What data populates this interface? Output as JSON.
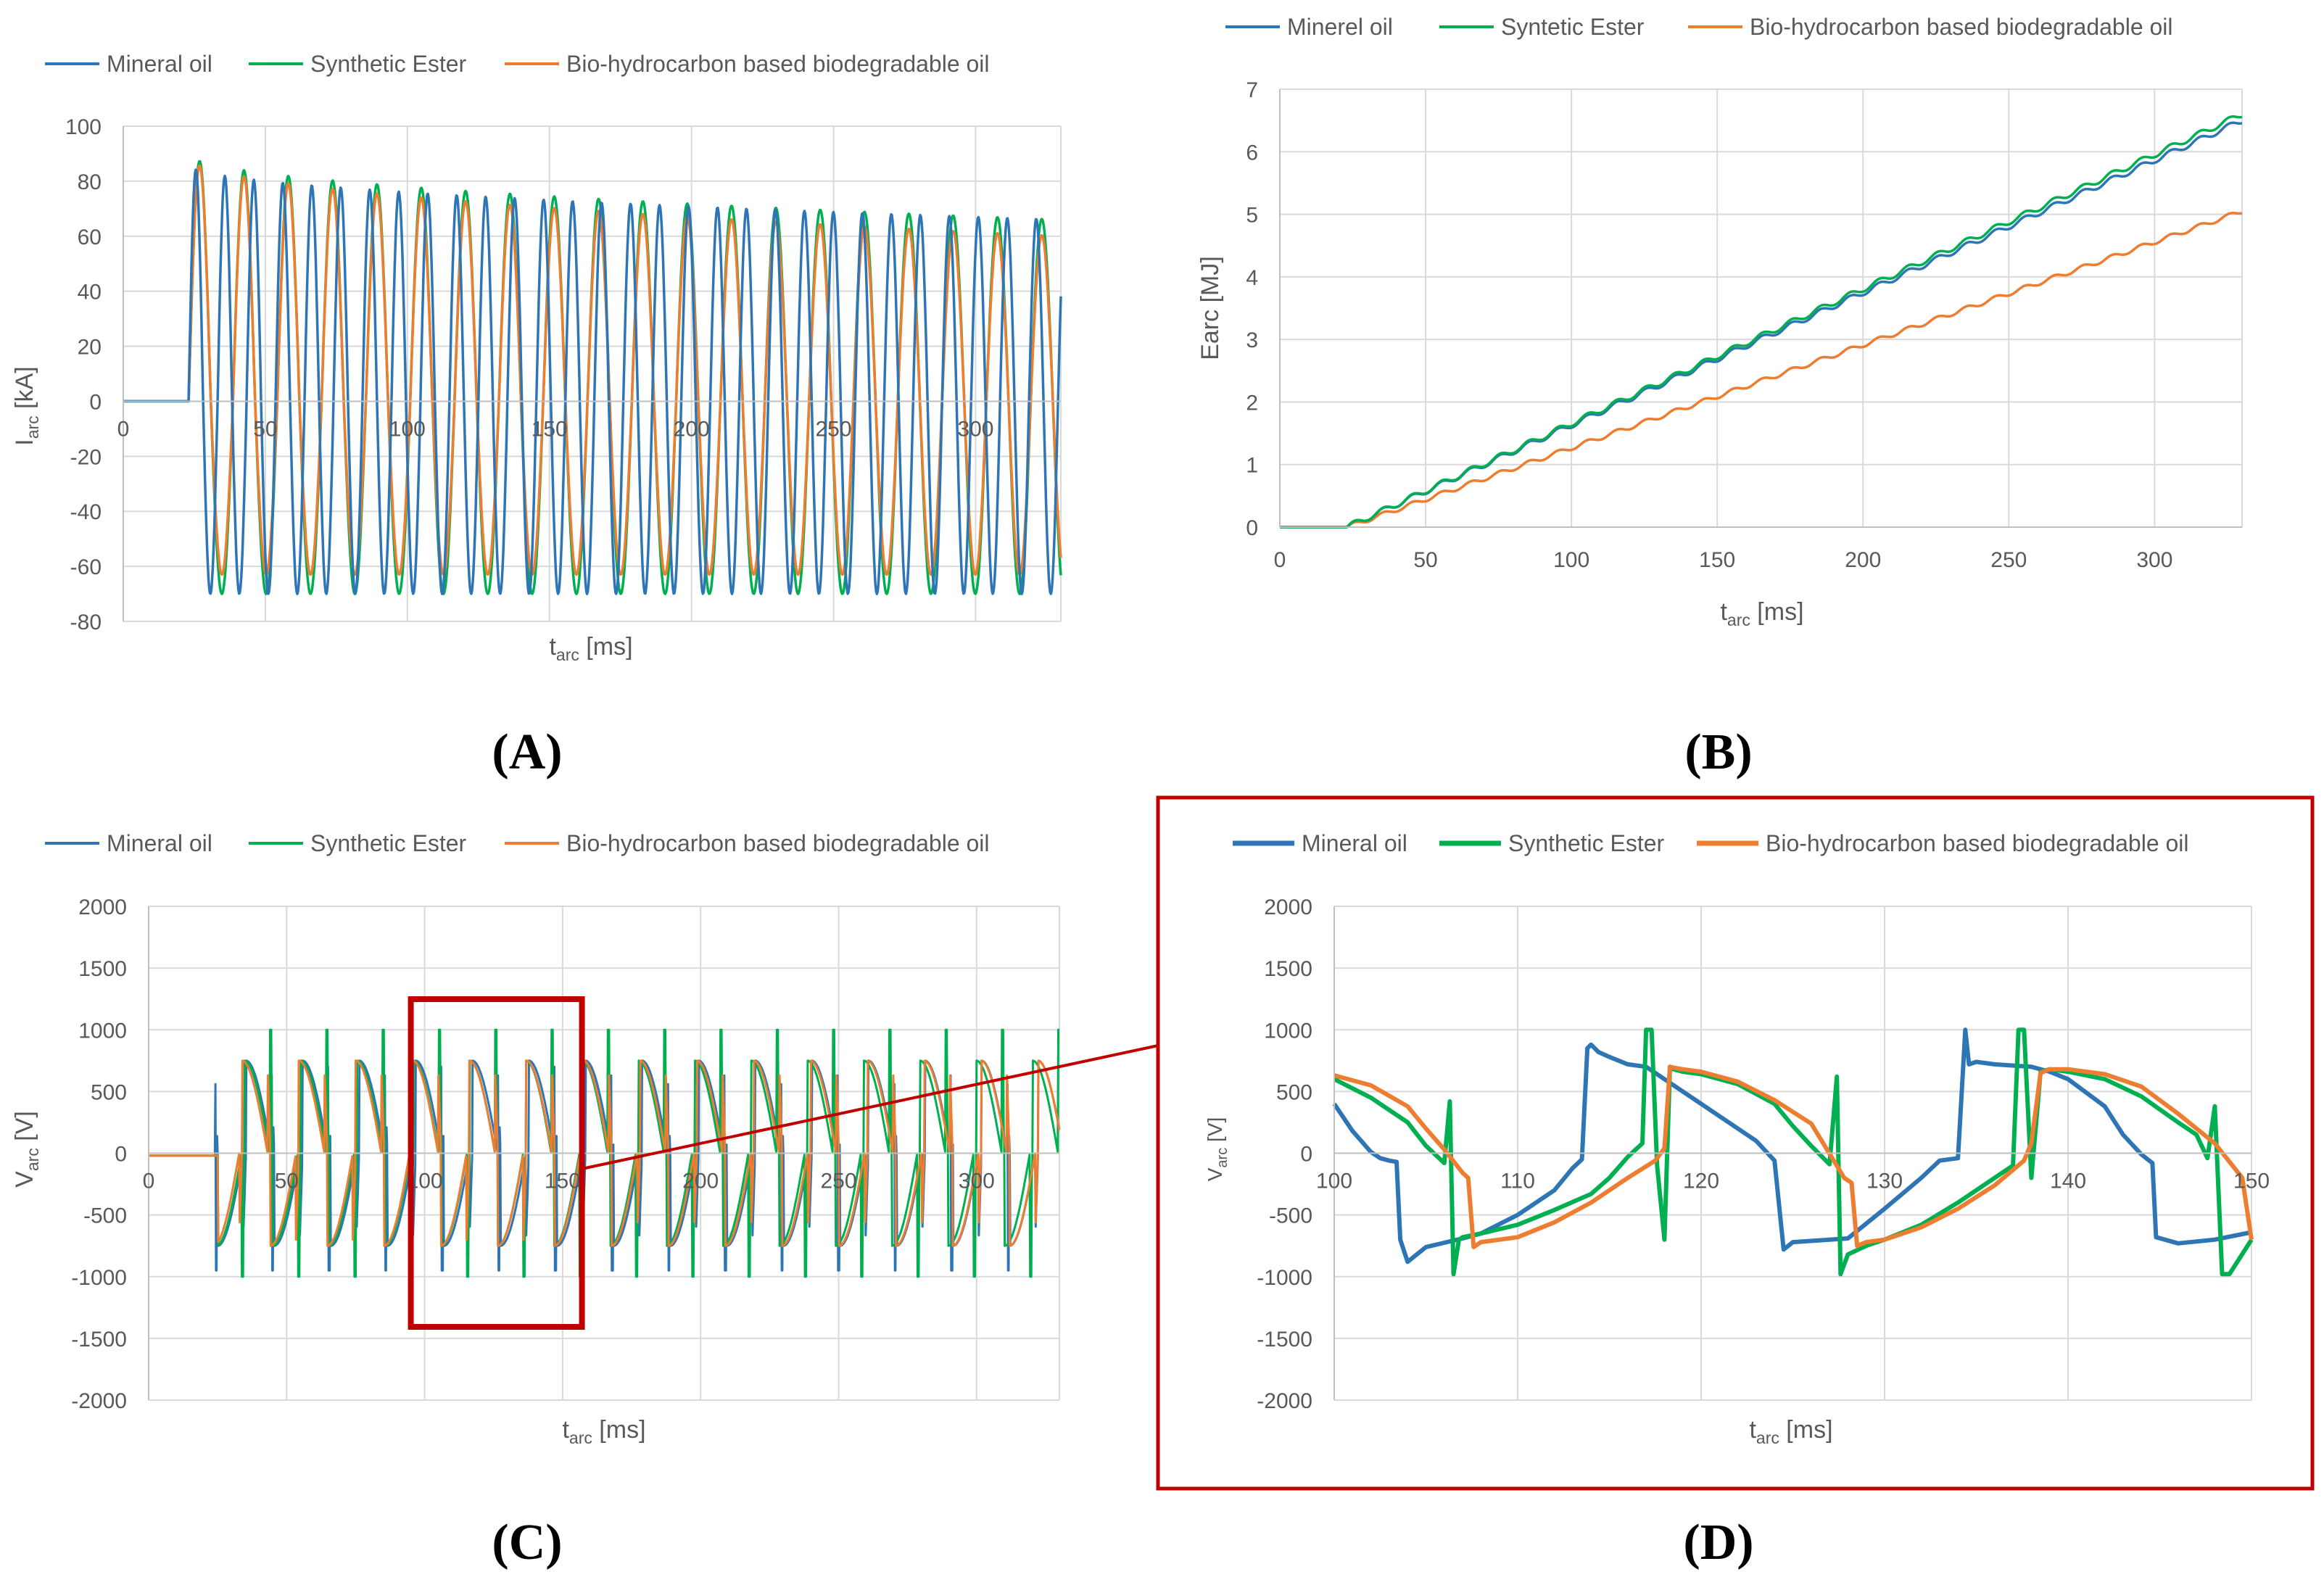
{
  "colors": {
    "mineral": "#2E75B6",
    "ester": "#00B050",
    "bio": "#ED7D31",
    "grid": "#D9D9D9",
    "axis": "#BFBFBF",
    "text": "#595959",
    "highlight": "#C00000"
  },
  "chart_data": [
    {
      "id": "A",
      "panel_label": "(A)",
      "type": "line",
      "ylabel_main": "I",
      "ylabel_sub": "arc",
      "ylabel_unit": " [kA]",
      "xlabel_main": "t",
      "xlabel_sub": "arc",
      "xlabel_unit": " [ms]",
      "xlim": [
        0,
        330
      ],
      "ylim": [
        -80,
        100
      ],
      "xticks": [
        "0",
        "50",
        "100",
        "150",
        "200",
        "250",
        "300"
      ],
      "yticks": [
        "100",
        "80",
        "60",
        "40",
        "20",
        "0",
        "-20",
        "-40",
        "-60",
        "-80"
      ],
      "legend": [
        "Mineral oil",
        "Synthetic Ester",
        "Bio-hydrocarbon based biodegradable oil"
      ],
      "series": [
        {
          "name": "Mineral oil",
          "model": "ac_current",
          "start_ms": 23,
          "period_ms": 10.2,
          "pos_peak_start": 86,
          "pos_peak_end": 66,
          "neg_peak": -70
        },
        {
          "name": "Synthetic Ester",
          "model": "ac_current",
          "start_ms": 23,
          "period_ms": 15.6,
          "pos_peak_start": 90,
          "pos_peak_end": 66,
          "neg_peak": -70
        },
        {
          "name": "Bio-hydrocarbon based biodegradable oil",
          "model": "ac_current",
          "start_ms": 23,
          "period_ms": 15.6,
          "pos_peak_start": 89,
          "pos_peak_end": 60,
          "neg_peak": -63
        }
      ]
    },
    {
      "id": "B",
      "panel_label": "(B)",
      "type": "line",
      "ylabel_main": "Earc [MJ]",
      "xlabel_main": "t",
      "xlabel_sub": "arc",
      "xlabel_unit": " [ms]",
      "xlim": [
        0,
        330
      ],
      "ylim": [
        0,
        7
      ],
      "xticks": [
        "0",
        "50",
        "100",
        "150",
        "200",
        "250",
        "300"
      ],
      "yticks": [
        "7",
        "6",
        "5",
        "4",
        "3",
        "2",
        "1",
        "0"
      ],
      "legend": [
        "Minerel oil",
        "Syntetic Ester",
        "Bio-hydrocarbon based biodegradable oil"
      ],
      "series": [
        {
          "name": "Minerel oil",
          "model": "energy",
          "x": [
            0,
            23,
            330
          ],
          "y": [
            0,
            0,
            6.5
          ]
        },
        {
          "name": "Syntetic Ester",
          "model": "energy",
          "x": [
            0,
            23,
            330
          ],
          "y": [
            0,
            0,
            6.6
          ]
        },
        {
          "name": "Bio-hydrocarbon based biodegradable oil",
          "model": "energy",
          "x": [
            0,
            23,
            330
          ],
          "y": [
            0,
            0,
            5.05
          ]
        }
      ]
    },
    {
      "id": "C",
      "panel_label": "(C)",
      "type": "line",
      "ylabel_main": "V",
      "ylabel_sub": "arc",
      "ylabel_unit": " [V]",
      "xlabel_main": "t",
      "xlabel_sub": "arc",
      "xlabel_unit": " [ms]",
      "xlim": [
        0,
        330
      ],
      "ylim": [
        -2000,
        2000
      ],
      "xticks": [
        "0",
        "50",
        "100",
        "150",
        "200",
        "250",
        "300"
      ],
      "yticks": [
        "2000",
        "1500",
        "1000",
        "500",
        "0",
        "-500",
        "-1000",
        "-1500",
        "-2000"
      ],
      "legend": [
        "Mineral oil",
        "Synthetic Ester",
        "Bio-hydrocarbon based biodegradable oil"
      ],
      "zoom_window_ms": [
        95,
        157
      ],
      "series": [
        {
          "name": "Mineral oil",
          "model": "arc_voltage"
        },
        {
          "name": "Synthetic Ester",
          "model": "arc_voltage"
        },
        {
          "name": "Bio-hydrocarbon based biodegradable oil",
          "model": "arc_voltage"
        }
      ]
    },
    {
      "id": "D",
      "panel_label": "(D)",
      "type": "line",
      "ylabel_main": "V",
      "ylabel_sub": "arc",
      "ylabel_unit": " [V]",
      "xlabel_main": "t",
      "xlabel_sub": "arc",
      "xlabel_unit": " [ms]",
      "xlim": [
        100,
        150
      ],
      "ylim": [
        -2000,
        2000
      ],
      "xticks": [
        "100",
        "110",
        "120",
        "130",
        "140",
        "150"
      ],
      "yticks": [
        "2000",
        "1500",
        "1000",
        "500",
        "0",
        "-500",
        "-1000",
        "-1500",
        "-2000"
      ],
      "legend": [
        "Mineral oil",
        "Synthetic Ester",
        "Bio-hydrocarbon based biodegradable oil"
      ],
      "series": [
        {
          "name": "Mineral oil",
          "model": "arc_voltage_zoom",
          "x": [
            100,
            101,
            102,
            102.5,
            103,
            103.4,
            103.6,
            104,
            105,
            107,
            108,
            110,
            112,
            113,
            113.5,
            113.8,
            114,
            114.4,
            115,
            116,
            117,
            120,
            123,
            124,
            124.5,
            125,
            127,
            128,
            130,
            132,
            133,
            134,
            134.4,
            134.6,
            135,
            136,
            138,
            139,
            140,
            142,
            143,
            144,
            144.6,
            144.8,
            146,
            148,
            150
          ],
          "y": [
            400,
            180,
            10,
            -40,
            -60,
            -70,
            -700,
            -880,
            -760,
            -690,
            -650,
            -500,
            -300,
            -120,
            -50,
            850,
            880,
            820,
            780,
            720,
            700,
            400,
            100,
            -60,
            -780,
            -720,
            -700,
            -690,
            -450,
            -200,
            -60,
            -40,
            1000,
            720,
            740,
            720,
            700,
            660,
            600,
            380,
            150,
            -10,
            -80,
            -680,
            -730,
            -700,
            -640
          ]
        },
        {
          "name": "Synthetic Ester",
          "model": "arc_voltage_zoom",
          "x": [
            100,
            102,
            104,
            105,
            106,
            106.3,
            106.5,
            106.8,
            107,
            108,
            110,
            112,
            114,
            115,
            116,
            116.8,
            117,
            117.3,
            117.6,
            118,
            118.3,
            118.5,
            119,
            120,
            122,
            124,
            125,
            126,
            127,
            127.4,
            127.6,
            128,
            129,
            130,
            132,
            134,
            136,
            137,
            137.3,
            137.6,
            138,
            138.5,
            139,
            140,
            142,
            144,
            146,
            147,
            147.6,
            148,
            148.4,
            148.8,
            150
          ],
          "y": [
            600,
            450,
            250,
            60,
            -80,
            420,
            -980,
            -700,
            -680,
            -650,
            -580,
            -460,
            -330,
            -200,
            -30,
            80,
            1000,
            1000,
            -100,
            -700,
            700,
            680,
            660,
            640,
            560,
            400,
            220,
            60,
            -90,
            620,
            -980,
            -820,
            -750,
            -700,
            -580,
            -400,
            -200,
            -100,
            1000,
            1000,
            -200,
            660,
            680,
            660,
            600,
            460,
            250,
            150,
            -40,
            380,
            -980,
            -980,
            -700
          ]
        },
        {
          "name": "Bio-hydrocarbon based biodegradable oil",
          "model": "arc_voltage_zoom",
          "x": [
            100,
            102,
            104,
            105,
            106,
            107,
            107.3,
            107.6,
            108,
            110,
            112,
            114,
            116,
            117.5,
            118,
            118.3,
            118.6,
            119,
            120,
            122,
            124,
            126,
            127.8,
            128.2,
            128.5,
            129,
            130,
            132,
            134,
            136,
            137.6,
            138,
            138.5,
            139,
            140,
            142,
            144,
            146,
            148,
            149.5,
            150
          ],
          "y": [
            630,
            550,
            380,
            200,
            30,
            -160,
            -200,
            -760,
            -720,
            -680,
            -560,
            -400,
            -200,
            -60,
            40,
            700,
            690,
            680,
            660,
            580,
            430,
            240,
            -200,
            -240,
            -750,
            -720,
            -700,
            -600,
            -450,
            -260,
            -60,
            80,
            650,
            680,
            680,
            640,
            540,
            320,
            80,
            -200,
            -700
          ]
        }
      ]
    }
  ]
}
